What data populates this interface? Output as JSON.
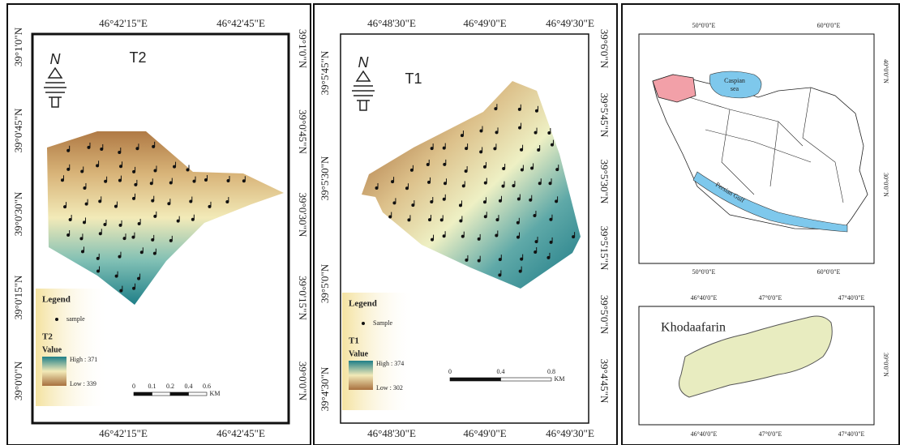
{
  "panels": [
    {
      "title": "T2",
      "north": "N",
      "top_labels": [
        "46°42'15\"E",
        "46°42'45\"E"
      ],
      "bottom_labels": [
        "46°42'15\"E",
        "46°42'45\"E"
      ],
      "left_labels": [
        "39°1'0\"N",
        "39°0'45\"N",
        "39°0'30\"N",
        "39°0'15\"N",
        "39°0'0\"N"
      ],
      "right_labels": [
        "39°1'0\"N",
        "39°0'45\"N",
        "39°0'30\"N",
        "39°0'15\"N",
        "39°0'0\"N"
      ],
      "legend": {
        "title": "Legend",
        "sample": "sample",
        "layer": "T2",
        "value": "Value",
        "high": "High : 371",
        "low": "Low : 339"
      },
      "scale": [
        "0",
        "0.1",
        "0.2",
        "0.4",
        "0.6",
        "KM"
      ]
    },
    {
      "title": "T1",
      "north": "N",
      "top_labels": [
        "46°48'30\"E",
        "46°49'0\"E",
        "46°49'30\"E"
      ],
      "bottom_labels": [
        "46°48'30\"E",
        "46°49'0\"E",
        "46°49'30\"E"
      ],
      "left_labels": [
        "39°5'45\"N",
        "39°5'30\"N",
        "39°5'0\"N",
        "39°4'30\"N"
      ],
      "right_labels": [
        "39°6'0\"N",
        "39°5'45\"N",
        "39°5'30\"N",
        "39°5'15\"N",
        "39°5'0\"N",
        "39°4'45\"N"
      ],
      "legend": {
        "title": "Legend",
        "sample": "Sample",
        "layer": "T1",
        "value": "Value",
        "high": "High : 374",
        "low": "Low : 302"
      },
      "scale": [
        "0",
        "0.4",
        "0.8",
        "KM"
      ]
    }
  ],
  "location_map": {
    "top_labels": [
      "50°0'0\"E",
      "60°0'0\"E"
    ],
    "bottom_labels": [
      "50°0'0\"E",
      "60°0'0\"E"
    ],
    "right_labels": [
      "40°0'0\"N",
      "30°0'0\"N"
    ],
    "caspian": [
      "Caspian",
      "sea"
    ],
    "gulf": "Persian Gulf"
  },
  "study_area_map": {
    "title": "Khodaafarin",
    "top_labels": [
      "46°40'0\"E",
      "47°0'0\"E",
      "47°40'0\"E"
    ],
    "bottom_labels": [
      "46°40'0\"E",
      "47°0'0\"E",
      "47°40'0\"E"
    ],
    "right_labels": [
      "39°0'0\"N"
    ]
  }
}
